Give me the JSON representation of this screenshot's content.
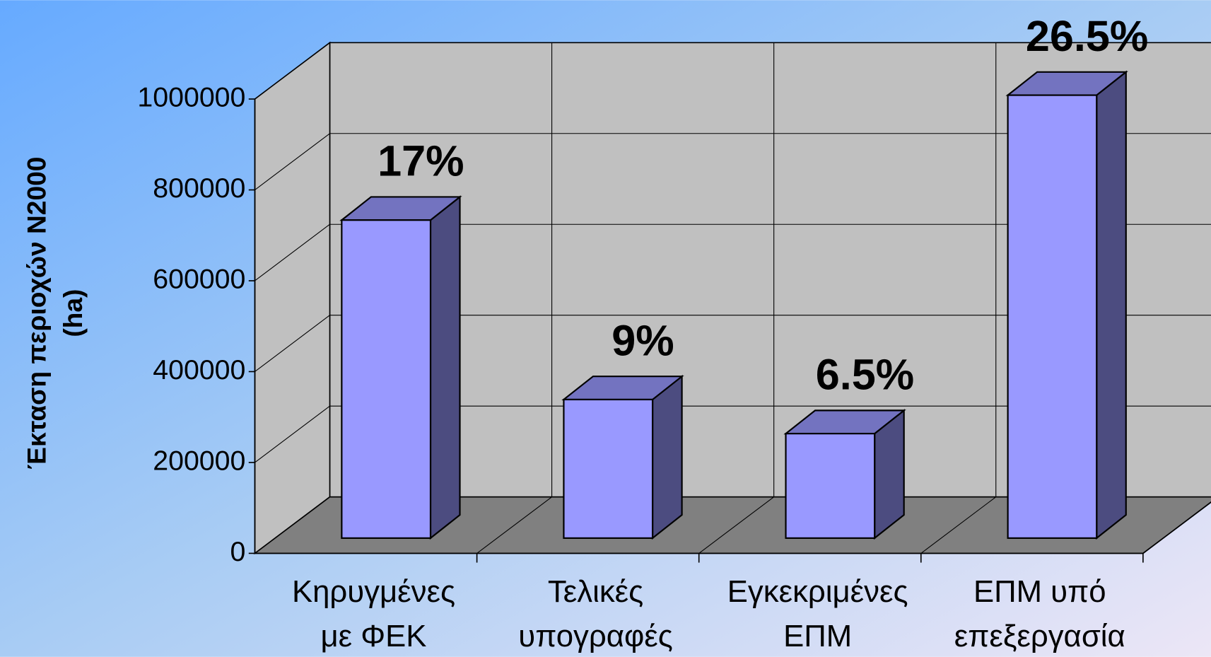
{
  "chart_data": {
    "type": "bar3d",
    "ylabel": [
      "Έκταση περιοχών N2000",
      "(ha)"
    ],
    "categories": [
      [
        "Κηρυγμένες",
        "με ΦΕΚ"
      ],
      [
        "Τελικές",
        "υπογραφές"
      ],
      [
        "Εγκεκριμένες",
        "ΕΠΜ"
      ],
      [
        "ΕΠΜ υπό",
        "επεξεργασία"
      ]
    ],
    "values": [
      700000,
      305000,
      230000,
      975000
    ],
    "annotations": [
      "17%",
      "9%",
      "6.5%",
      "26.5%"
    ],
    "color": "#9999ff",
    "ylim": [
      0,
      1000000
    ],
    "yticks": [
      0,
      200000,
      400000,
      600000,
      800000,
      1000000
    ],
    "grid": true
  }
}
